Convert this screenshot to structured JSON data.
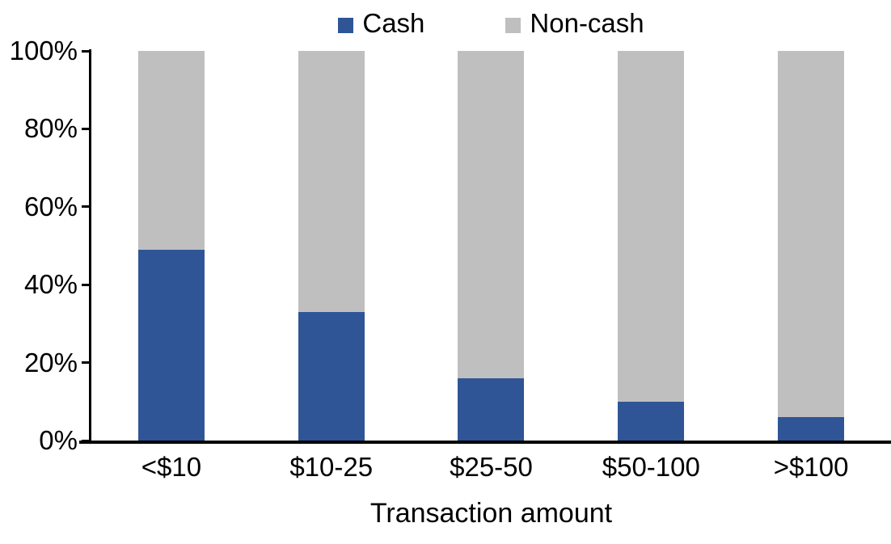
{
  "chart_data": {
    "type": "bar",
    "stacked": true,
    "orientation": "vertical",
    "categories": [
      "<$10",
      "$10-25",
      "$25-50",
      "$50-100",
      ">$100"
    ],
    "series": [
      {
        "name": "Cash",
        "color": "#2F5597",
        "values": [
          49,
          33,
          16,
          10,
          6
        ]
      },
      {
        "name": "Non-cash",
        "color": "#BFBFBF",
        "values": [
          51,
          67,
          84,
          90,
          94
        ]
      }
    ],
    "xlabel": "Transaction amount",
    "ylabel": "",
    "ylim": [
      0,
      100
    ],
    "yticks": [
      "0%",
      "20%",
      "40%",
      "60%",
      "80%",
      "100%"
    ],
    "legend_position": "top",
    "grid": false,
    "axis_color": "#000000",
    "background_color": "#FFFFFF"
  }
}
